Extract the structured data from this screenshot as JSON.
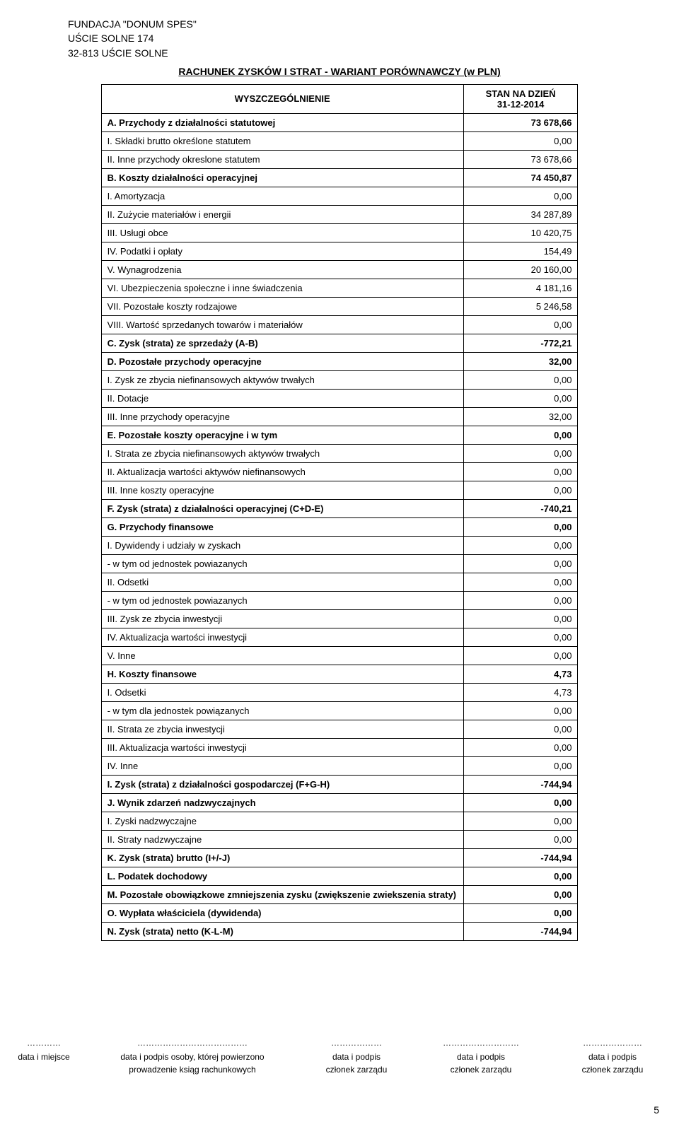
{
  "org": {
    "name": "FUNDACJA \"DONUM SPES\"",
    "addr1": "UŚCIE SOLNE 174",
    "addr2": "32-813 UŚCIE SOLNE"
  },
  "title": "RACHUNEK ZYSKÓW I STRAT - WARIANT PORÓWNAWCZY (w PLN)",
  "header": {
    "col1": "WYSZCZEGÓLNIENIE",
    "col2a": "STAN NA DZIEŃ",
    "col2b": "31-12-2014"
  },
  "rows": [
    {
      "label": "A. Przychody z działalności statutowej",
      "value": "73 678,66",
      "bold": true,
      "indent": 0
    },
    {
      "label": "I. Składki brutto określone statutem",
      "value": "0,00",
      "bold": false,
      "indent": 1
    },
    {
      "label": "II. Inne przychody okreslone statutem",
      "value": "73 678,66",
      "bold": false,
      "indent": 1
    },
    {
      "label": "B. Koszty  działalności operacyjnej",
      "value": "74 450,87",
      "bold": true,
      "indent": 0
    },
    {
      "label": "I. Amortyzacja",
      "value": "0,00",
      "bold": false,
      "indent": 1
    },
    {
      "label": "II. Zużycie materiałów i energii",
      "value": "34 287,89",
      "bold": false,
      "indent": 1
    },
    {
      "label": "III. Usługi obce",
      "value": "10 420,75",
      "bold": false,
      "indent": 1
    },
    {
      "label": "IV. Podatki i opłaty",
      "value": "154,49",
      "bold": false,
      "indent": 1
    },
    {
      "label": "V. Wynagrodzenia",
      "value": "20 160,00",
      "bold": false,
      "indent": 1
    },
    {
      "label": "VI. Ubezpieczenia społeczne i inne świadczenia",
      "value": "4 181,16",
      "bold": false,
      "indent": 1
    },
    {
      "label": "VII. Pozostałe koszty rodzajowe",
      "value": "5 246,58",
      "bold": false,
      "indent": 1
    },
    {
      "label": "VIII. Wartość sprzedanych towarów i materiałów",
      "value": "0,00",
      "bold": false,
      "indent": 1
    },
    {
      "label": "C. Zysk (strata) ze sprzedaży (A-B)",
      "value": "-772,21",
      "bold": true,
      "indent": 0
    },
    {
      "label": "D. Pozostałe  przychody operacyjne",
      "value": "32,00",
      "bold": true,
      "indent": 0
    },
    {
      "label": "I. Zysk ze zbycia niefinansowych aktywów trwałych",
      "value": "0,00",
      "bold": false,
      "indent": 1
    },
    {
      "label": "II. Dotacje",
      "value": "0,00",
      "bold": false,
      "indent": 1
    },
    {
      "label": "III. Inne przychody operacyjne",
      "value": "32,00",
      "bold": false,
      "indent": 1
    },
    {
      "label": "E. Pozostałe  koszty operacyjne i w tym",
      "value": "0,00",
      "bold": true,
      "indent": 0
    },
    {
      "label": "I. Strata ze zbycia niefinansowych aktywów trwałych",
      "value": "0,00",
      "bold": false,
      "indent": 1
    },
    {
      "label": "II. Aktualizacja wartości aktywów niefinansowych",
      "value": "0,00",
      "bold": false,
      "indent": 1
    },
    {
      "label": "III. Inne koszty operacyjne",
      "value": "0,00",
      "bold": false,
      "indent": 1
    },
    {
      "label": "F. Zysk (strata) z działalności operacyjnej (C+D-E)",
      "value": "-740,21",
      "bold": true,
      "indent": 0
    },
    {
      "label": "G. Przychody  finansowe",
      "value": "0,00",
      "bold": true,
      "indent": 0
    },
    {
      "label": "I. Dywidendy i udziały w zyskach",
      "value": "0,00",
      "bold": false,
      "indent": 1
    },
    {
      "label": "- w tym od jednostek powiazanych",
      "value": "0,00",
      "bold": false,
      "indent": 1
    },
    {
      "label": "II. Odsetki",
      "value": "0,00",
      "bold": false,
      "indent": 1
    },
    {
      "label": " - w tym od jednostek powiazanych",
      "value": "0,00",
      "bold": false,
      "indent": 2
    },
    {
      "label": "III. Zysk ze zbycia inwestycji",
      "value": "0,00",
      "bold": false,
      "indent": 1
    },
    {
      "label": "IV. Aktualizacja wartości inwestycji",
      "value": "0,00",
      "bold": false,
      "indent": 1
    },
    {
      "label": "V. Inne",
      "value": "0,00",
      "bold": false,
      "indent": 1
    },
    {
      "label": "H. Koszty  finansowe",
      "value": "4,73",
      "bold": true,
      "indent": 0
    },
    {
      "label": "I. Odsetki",
      "value": "4,73",
      "bold": false,
      "indent": 1
    },
    {
      "label": "- w tym dla jednostek powiązanych",
      "value": "0,00",
      "bold": false,
      "indent": 1
    },
    {
      "label": "II. Strata ze zbycia inwestycji",
      "value": "0,00",
      "bold": false,
      "indent": 1
    },
    {
      "label": "III. Aktualizacja wartości inwestycji",
      "value": "0,00",
      "bold": false,
      "indent": 1
    },
    {
      "label": "IV. Inne",
      "value": "0,00",
      "bold": false,
      "indent": 1
    },
    {
      "label": "I. Zysk (strata) z działalności gospodarczej (F+G-H)",
      "value": "-744,94",
      "bold": true,
      "indent": 0
    },
    {
      "label": "J. Wynik zdarzeń nadzwyczajnych",
      "value": "0,00",
      "bold": true,
      "indent": 0
    },
    {
      "label": "I. Zyski nadzwyczajne",
      "value": "0,00",
      "bold": false,
      "indent": 1
    },
    {
      "label": "II. Straty nadzwyczajne",
      "value": "0,00",
      "bold": false,
      "indent": 1
    },
    {
      "label": "K. Zysk (strata)  brutto (I+/-J)",
      "value": "-744,94",
      "bold": true,
      "indent": 0
    },
    {
      "label": "L. Podatek  dochodowy",
      "value": "0,00",
      "bold": true,
      "indent": 0
    },
    {
      "label": "M. Pozostałe obowiązkowe zmniejszenia zysku (zwiększenie zwiekszenia straty)",
      "value": "0,00",
      "bold": true,
      "indent": 0
    },
    {
      "label": "O. Wypłata właściciela (dywidenda)",
      "value": "0,00",
      "bold": true,
      "indent": 0
    },
    {
      "label": "N. Zysk (strata) netto (K-L-M)",
      "value": "-744,94",
      "bold": true,
      "indent": 0
    }
  ],
  "sig": {
    "c1": {
      "dots": "…………",
      "l1": "data i miejsce",
      "l2": ""
    },
    "c2": {
      "dots": "…………………………………",
      "l1": "data i podpis osoby, której powierzono",
      "l2": "prowadzenie ksiąg rachunkowych"
    },
    "c3": {
      "dots": "………………",
      "l1": "data i podpis",
      "l2": "członek zarządu"
    },
    "c4": {
      "dots": "………………………",
      "l1": "data i podpis",
      "l2": "członek zarządu"
    },
    "c5": {
      "dots": "…………………",
      "l1": "data i podpis",
      "l2": "członek zarządu"
    }
  },
  "page_number": "5"
}
